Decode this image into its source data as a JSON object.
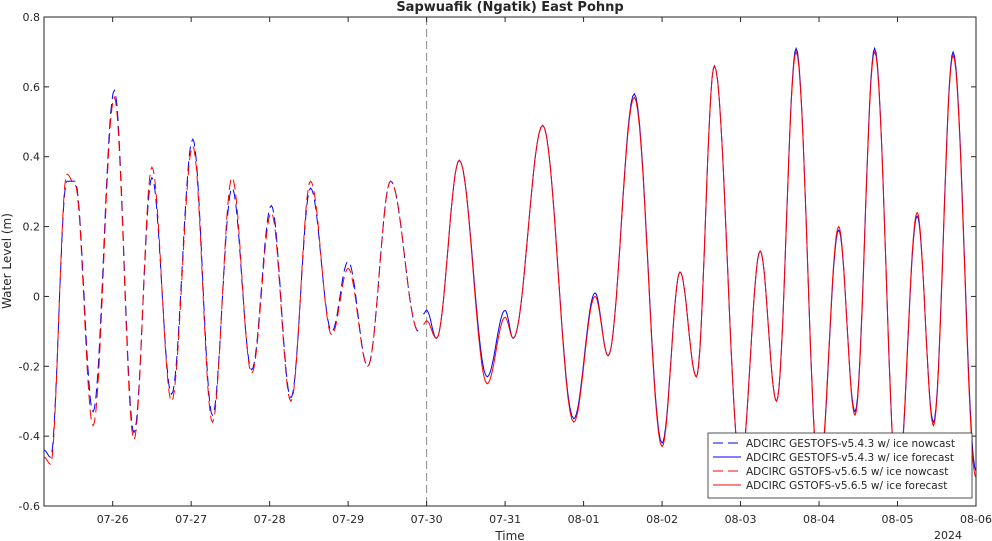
{
  "chart_data": {
    "type": "line",
    "title": "Sapwuafik (Ngatik) East Pohnp",
    "xlabel": "Time",
    "ylabel": "Water Level (m)",
    "x_unit": "date (July-August 2024)",
    "x_ticks": [
      "07-26",
      "07-27",
      "07-28",
      "07-29",
      "07-30",
      "07-31",
      "08-01",
      "08-02",
      "08-03",
      "08-04",
      "08-05",
      "08-06"
    ],
    "x_year_label": "2024",
    "xlim": [
      "07-25 03:00",
      "08-06 00:00"
    ],
    "ylim": [
      -0.6,
      0.8
    ],
    "y_ticks": [
      "-0.6",
      "-0.4",
      "-0.2",
      "0",
      "0.2",
      "0.4",
      "0.6",
      "0.8"
    ],
    "forecast_start": "07-30 00:00",
    "grid": false,
    "legend_position": "bottom-right",
    "series": [
      {
        "name": "ADCIRC GESTOFS-v5.4.3 w/ ice nowcast",
        "color": "#0000ff",
        "style": "dashed",
        "period": "nowcast",
        "extrema": [
          [
            "07-25 03:00",
            -0.44
          ],
          [
            "07-25 05:00",
            -0.46
          ],
          [
            "07-25 10:00",
            0.33
          ],
          [
            "07-25 12:30",
            0.33
          ],
          [
            "07-25 18:00",
            -0.33
          ],
          [
            "07-26 00:30",
            0.59
          ],
          [
            "07-26 06:30",
            -0.39
          ],
          [
            "07-26 12:00",
            0.34
          ],
          [
            "07-26 18:00",
            -0.28
          ],
          [
            "07-27 00:30",
            0.45
          ],
          [
            "07-27 06:30",
            -0.34
          ],
          [
            "07-27 12:30",
            0.31
          ],
          [
            "07-27 18:30",
            -0.21
          ],
          [
            "07-28 00:30",
            0.26
          ],
          [
            "07-28 06:30",
            -0.29
          ],
          [
            "07-28 12:30",
            0.31
          ],
          [
            "07-28 19:00",
            -0.1
          ],
          [
            "07-29 00:00",
            0.1
          ],
          [
            "07-29 06:00",
            -0.2
          ],
          [
            "07-29 13:00",
            0.33
          ],
          [
            "07-29 21:30",
            -0.1
          ]
        ]
      },
      {
        "name": "ADCIRC GESTOFS-v5.4.3 w/ ice forecast",
        "color": "#0000ff",
        "style": "solid",
        "period": "forecast",
        "extrema": [
          [
            "07-29 23:00",
            -0.05
          ],
          [
            "07-30 00:00",
            -0.04
          ],
          [
            "07-30 03:00",
            -0.12
          ],
          [
            "07-30 10:00",
            0.39
          ],
          [
            "07-30 18:30",
            -0.23
          ],
          [
            "07-31 00:00",
            -0.04
          ],
          [
            "07-31 02:30",
            -0.12
          ],
          [
            "07-31 11:30",
            0.49
          ],
          [
            "07-31 21:00",
            -0.35
          ],
          [
            "08-01 03:30",
            0.01
          ],
          [
            "08-01 07:30",
            -0.17
          ],
          [
            "08-01 15:30",
            0.58
          ],
          [
            "08-02 00:00",
            -0.42
          ],
          [
            "08-02 05:30",
            0.07
          ],
          [
            "08-02 10:30",
            -0.23
          ],
          [
            "08-02 16:00",
            0.66
          ],
          [
            "08-03 00:00",
            -0.48
          ],
          [
            "08-03 06:00",
            0.13
          ],
          [
            "08-03 11:00",
            -0.3
          ],
          [
            "08-03 17:00",
            0.71
          ],
          [
            "08-04 00:00",
            -0.52
          ],
          [
            "08-04 06:00",
            0.19
          ],
          [
            "08-04 11:00",
            -0.33
          ],
          [
            "08-04 17:00",
            0.71
          ],
          [
            "08-05 00:00",
            -0.56
          ],
          [
            "08-05 06:00",
            0.23
          ],
          [
            "08-05 11:00",
            -0.36
          ],
          [
            "08-05 17:00",
            0.7
          ],
          [
            "08-06 00:00",
            -0.5
          ]
        ]
      },
      {
        "name": "ADCIRC GSTOFS-v5.6.5 w/ ice nowcast",
        "color": "#ff0000",
        "style": "dashed",
        "period": "nowcast",
        "extrema": [
          [
            "07-25 03:00",
            -0.46
          ],
          [
            "07-25 05:00",
            -0.48
          ],
          [
            "07-25 10:00",
            0.35
          ],
          [
            "07-25 12:30",
            0.32
          ],
          [
            "07-25 18:00",
            -0.37
          ],
          [
            "07-26 00:30",
            0.57
          ],
          [
            "07-26 06:30",
            -0.41
          ],
          [
            "07-26 12:00",
            0.37
          ],
          [
            "07-26 18:00",
            -0.3
          ],
          [
            "07-27 00:30",
            0.43
          ],
          [
            "07-27 06:30",
            -0.36
          ],
          [
            "07-27 12:30",
            0.34
          ],
          [
            "07-27 18:30",
            -0.22
          ],
          [
            "07-28 00:30",
            0.24
          ],
          [
            "07-28 06:30",
            -0.3
          ],
          [
            "07-28 12:30",
            0.33
          ],
          [
            "07-28 19:00",
            -0.11
          ],
          [
            "07-29 00:00",
            0.08
          ],
          [
            "07-29 06:00",
            -0.2
          ],
          [
            "07-29 13:00",
            0.33
          ],
          [
            "07-29 21:30",
            -0.1
          ]
        ]
      },
      {
        "name": "ADCIRC GSTOFS-v5.6.5 w/ ice forecast",
        "color": "#ff0000",
        "style": "solid",
        "period": "forecast",
        "extrema": [
          [
            "07-29 23:00",
            -0.08
          ],
          [
            "07-30 00:00",
            -0.07
          ],
          [
            "07-30 03:00",
            -0.12
          ],
          [
            "07-30 10:00",
            0.39
          ],
          [
            "07-30 18:30",
            -0.25
          ],
          [
            "07-31 00:00",
            -0.06
          ],
          [
            "07-31 02:30",
            -0.12
          ],
          [
            "07-31 11:30",
            0.49
          ],
          [
            "07-31 21:00",
            -0.36
          ],
          [
            "08-01 03:30",
            0.0
          ],
          [
            "08-01 07:30",
            -0.17
          ],
          [
            "08-01 15:30",
            0.57
          ],
          [
            "08-02 00:00",
            -0.43
          ],
          [
            "08-02 05:30",
            0.07
          ],
          [
            "08-02 10:30",
            -0.23
          ],
          [
            "08-02 16:00",
            0.66
          ],
          [
            "08-03 00:00",
            -0.48
          ],
          [
            "08-03 06:00",
            0.13
          ],
          [
            "08-03 11:00",
            -0.3
          ],
          [
            "08-03 17:00",
            0.7
          ],
          [
            "08-04 00:00",
            -0.51
          ],
          [
            "08-04 06:00",
            0.2
          ],
          [
            "08-04 11:00",
            -0.34
          ],
          [
            "08-04 17:00",
            0.7
          ],
          [
            "08-05 00:00",
            -0.55
          ],
          [
            "08-05 06:00",
            0.24
          ],
          [
            "08-05 11:00",
            -0.37
          ],
          [
            "08-05 17:00",
            0.69
          ],
          [
            "08-06 00:00",
            -0.52
          ]
        ]
      }
    ]
  }
}
